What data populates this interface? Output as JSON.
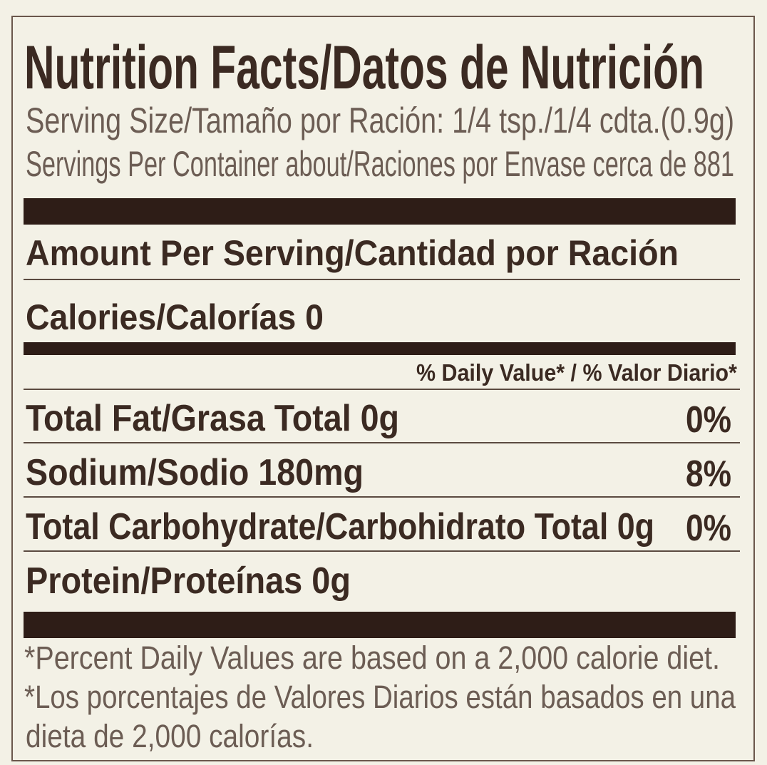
{
  "label": {
    "title": "Nutrition Facts/Datos de Nutrición",
    "serving_size": "Serving Size/Tamaño por Ración: 1/4 tsp./1/4 cdta.(0.9g)",
    "servings_per_container": "Servings Per Container about/Raciones por Envase cerca de 881",
    "amount_per_serving": "Amount Per Serving/Cantidad por Ración",
    "calories": "Calories/Calorías 0",
    "daily_value_header": "% Daily Value* / % Valor Diario*",
    "nutrients": [
      {
        "name": "Total Fat/Grasa Total 0g",
        "dv": "0%"
      },
      {
        "name": "Sodium/Sodio 180mg",
        "dv": "8%"
      },
      {
        "name": "Total Carbohydrate/Carbohidrato Total 0g",
        "dv": "0%"
      },
      {
        "name": "Protein/Proteínas 0g",
        "dv": ""
      }
    ],
    "footnote_en": "*Percent Daily Values are based on a 2,000 calorie diet.",
    "footnote_es_1": "*Los porcentajes de Valores Diarios están basados en una",
    "footnote_es_2": "dieta de 2,000 calorías."
  },
  "colors": {
    "background": "#f3f1e6",
    "ink": "#3b2a22",
    "bars": "#2e1d17"
  }
}
